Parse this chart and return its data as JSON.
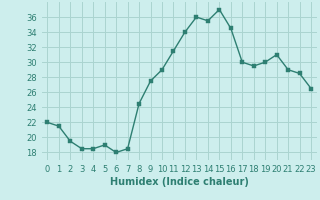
{
  "x": [
    0,
    1,
    2,
    3,
    4,
    5,
    6,
    7,
    8,
    9,
    10,
    11,
    12,
    13,
    14,
    15,
    16,
    17,
    18,
    19,
    20,
    21,
    22,
    23
  ],
  "y": [
    22,
    21.5,
    19.5,
    18.5,
    18.5,
    19,
    18,
    18.5,
    24.5,
    27.5,
    29,
    31.5,
    34,
    36,
    35.5,
    37,
    34.5,
    30,
    29.5,
    30,
    31,
    29,
    28.5,
    26.5
  ],
  "line_color": "#2e7f72",
  "marker_color": "#2e7f72",
  "bg_color": "#cdeeed",
  "grid_color": "#aad4d0",
  "xlabel": "Humidex (Indice chaleur)",
  "ylim": [
    17,
    38
  ],
  "xlim": [
    -0.5,
    23.5
  ],
  "yticks": [
    18,
    20,
    22,
    24,
    26,
    28,
    30,
    32,
    34,
    36
  ],
  "xticks": [
    0,
    1,
    2,
    3,
    4,
    5,
    6,
    7,
    8,
    9,
    10,
    11,
    12,
    13,
    14,
    15,
    16,
    17,
    18,
    19,
    20,
    21,
    22,
    23
  ],
  "tick_color": "#2e7f72",
  "xlabel_fontsize": 7,
  "tick_fontsize": 6,
  "line_width": 1.0,
  "marker_size": 2.5
}
